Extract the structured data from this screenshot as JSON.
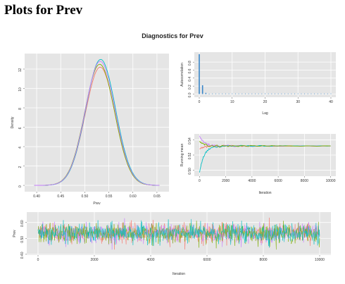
{
  "page": {
    "title": "Plots for Prev"
  },
  "figure": {
    "title": "Diagnostics for Prev"
  },
  "colors": {
    "panel_bg": "#e5e5e5",
    "grid": "#ffffff",
    "chains": [
      "#f8766d",
      "#7cae00",
      "#00bfc4",
      "#c77cff"
    ]
  },
  "chart_data": [
    {
      "type": "line",
      "name": "density",
      "xlabel": "Prev",
      "ylabel": "Density",
      "xlim": [
        0.375,
        0.675
      ],
      "ylim": [
        -0.65,
        13.6
      ],
      "xticks": [
        "0.40",
        "0.45",
        "0.50",
        "0.55",
        "0.60",
        "0.65"
      ],
      "xtick_values": [
        0.4,
        0.45,
        0.5,
        0.55,
        0.6,
        0.65
      ],
      "yticks": [
        "0",
        "2",
        "4",
        "6",
        "8",
        "10",
        "12"
      ],
      "ytick_values": [
        0,
        2,
        4,
        6,
        8,
        10,
        12
      ],
      "series_params": [
        {
          "mean": 0.532,
          "peak": 12.2
        },
        {
          "mean": 0.531,
          "peak": 12.5
        },
        {
          "mean": 0.533,
          "peak": 13.0
        },
        {
          "mean": 0.532,
          "peak": 12.8
        }
      ],
      "sd": 0.031
    },
    {
      "type": "bar",
      "name": "autocorrelation",
      "xlabel": "Lag",
      "ylabel": "Autocorrelation",
      "xlim": [
        -1.5,
        41.5
      ],
      "ylim": [
        -0.08,
        1.05
      ],
      "xticks": [
        "0",
        "10",
        "20",
        "30",
        "40"
      ],
      "xtick_values": [
        0,
        10,
        20,
        30,
        40
      ],
      "yticks": [
        "0.0",
        "0.2",
        "0.4",
        "0.6",
        "0.8"
      ],
      "ytick_values": [
        0,
        0.2,
        0.4,
        0.6,
        0.8
      ],
      "lags": [
        0,
        1,
        2,
        3
      ],
      "values": [
        1.0,
        0.22,
        0.03,
        0.01
      ]
    },
    {
      "type": "line",
      "name": "running-mean",
      "xlabel": "Iteration",
      "ylabel": "Running mean",
      "xlim": [
        -400,
        10400
      ],
      "ylim": [
        0.492,
        0.548
      ],
      "xticks": [
        "0",
        "2000",
        "4000",
        "6000",
        "8000",
        "10000"
      ],
      "xtick_values": [
        0,
        2000,
        4000,
        6000,
        8000,
        10000
      ],
      "yticks": [
        "0.50",
        "0.52",
        "0.54"
      ],
      "ytick_values": [
        0.5,
        0.52,
        0.54
      ],
      "final_mean": 0.532
    },
    {
      "type": "line",
      "name": "trace",
      "xlabel": "Iteration",
      "ylabel": "Prev",
      "xlim": [
        -400,
        10400
      ],
      "ylim": [
        0.395,
        0.665
      ],
      "xticks": [
        "0",
        "2000",
        "4000",
        "6000",
        "8000",
        "10000"
      ],
      "xtick_values": [
        0,
        2000,
        4000,
        6000,
        8000,
        10000
      ],
      "yticks": [
        "0.40",
        "0.50",
        "0.60"
      ],
      "ytick_values": [
        0.4,
        0.5,
        0.6
      ],
      "center": 0.532
    }
  ]
}
